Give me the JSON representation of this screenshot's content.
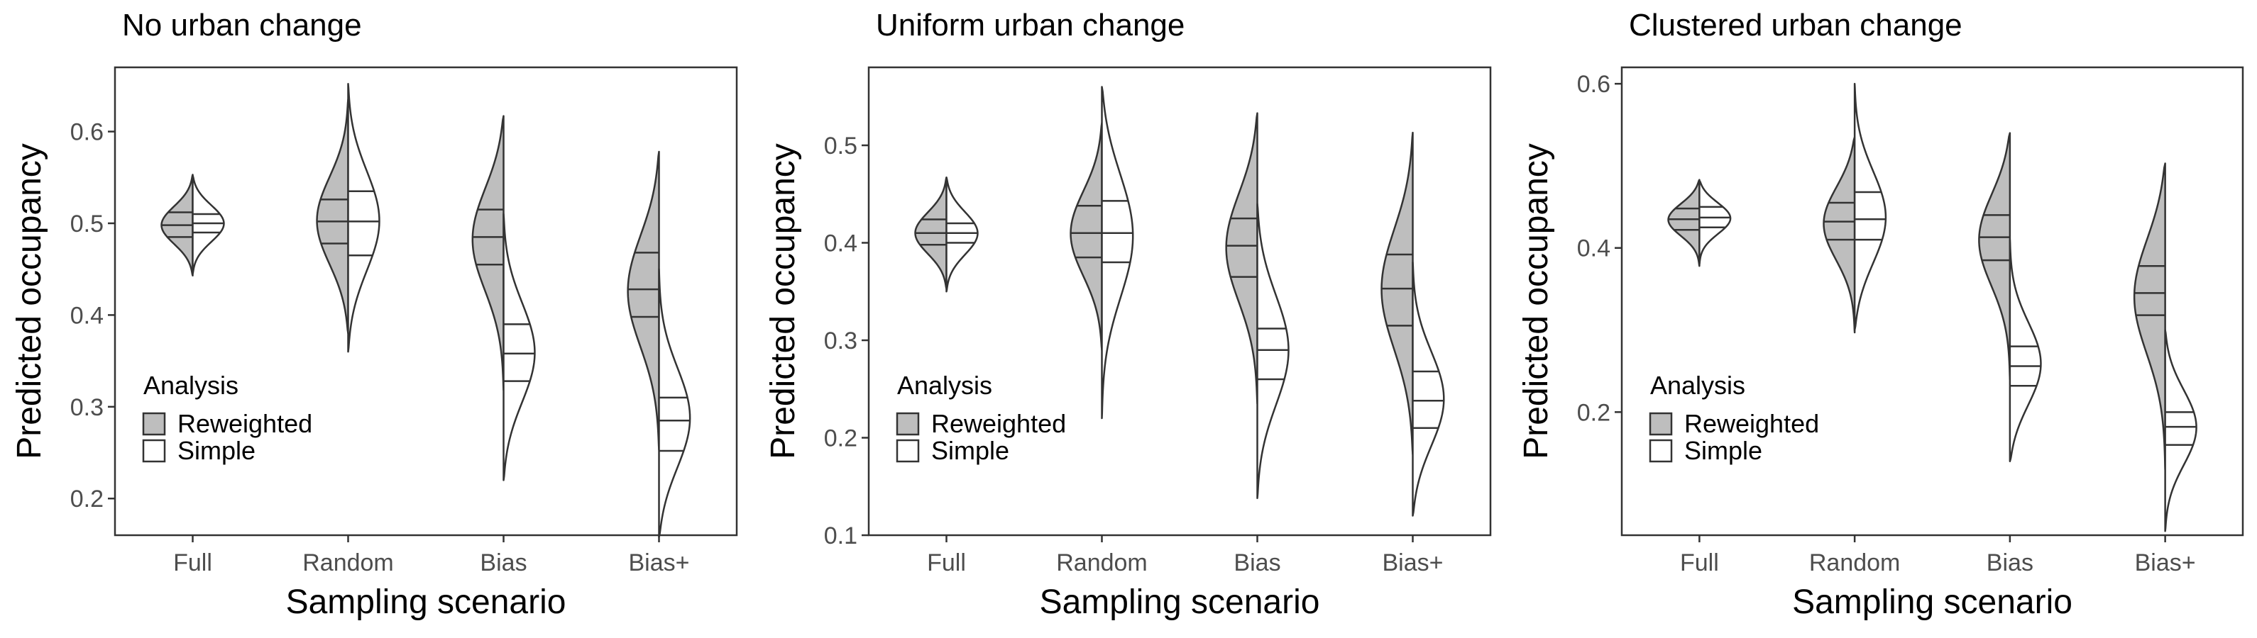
{
  "colors": {
    "reweighted_fill": "#bebebe",
    "simple_fill": "#ffffff",
    "outline": "#333333",
    "tick_text": "#4d4d4d"
  },
  "legend": {
    "title": "Analysis",
    "placement": "bottom-left inside each panel",
    "entries": [
      "Reweighted",
      "Simple"
    ]
  },
  "chart_data": [
    {
      "type": "split-violin",
      "title": "No urban change",
      "xlabel": "Sampling scenario",
      "ylabel": "Predicted occupancy",
      "categories": [
        "Full",
        "Random",
        "Bias",
        "Bias+"
      ],
      "ylim": [
        0.16,
        0.67
      ],
      "yticks": [
        0.2,
        0.3,
        0.4,
        0.5,
        0.6
      ],
      "ytick_labels": [
        "0.2",
        "0.3",
        "0.4",
        "0.5",
        "0.6"
      ],
      "grid": false,
      "quantiles": [
        0.25,
        0.5,
        0.75
      ],
      "series": [
        {
          "name": "Reweighted",
          "fill": "#bebebe",
          "violins": [
            {
              "min": 0.443,
              "q1": 0.485,
              "median": 0.498,
              "q3": 0.512,
              "max": 0.553
            },
            {
              "min": 0.38,
              "q1": 0.478,
              "median": 0.502,
              "q3": 0.526,
              "max": 0.635
            },
            {
              "min": 0.318,
              "q1": 0.455,
              "median": 0.485,
              "q3": 0.515,
              "max": 0.617
            },
            {
              "min": 0.253,
              "q1": 0.398,
              "median": 0.428,
              "q3": 0.468,
              "max": 0.578
            }
          ]
        },
        {
          "name": "Simple",
          "fill": "#ffffff",
          "violins": [
            {
              "min": 0.445,
              "q1": 0.49,
              "median": 0.5,
              "q3": 0.51,
              "max": 0.552
            },
            {
              "min": 0.36,
              "q1": 0.465,
              "median": 0.502,
              "q3": 0.535,
              "max": 0.652
            },
            {
              "min": 0.22,
              "q1": 0.328,
              "median": 0.358,
              "q3": 0.39,
              "max": 0.51
            },
            {
              "min": 0.158,
              "q1": 0.252,
              "median": 0.285,
              "q3": 0.31,
              "max": 0.45
            }
          ]
        }
      ]
    },
    {
      "type": "split-violin",
      "title": "Uniform urban change",
      "xlabel": "Sampling scenario",
      "ylabel": "Predicted occupancy",
      "categories": [
        "Full",
        "Random",
        "Bias",
        "Bias+"
      ],
      "ylim": [
        0.1,
        0.58
      ],
      "yticks": [
        0.1,
        0.2,
        0.3,
        0.4,
        0.5
      ],
      "ytick_labels": [
        "0.1",
        "0.2",
        "0.3",
        "0.4",
        "0.5"
      ],
      "grid": false,
      "quantiles": [
        0.25,
        0.5,
        0.75
      ],
      "series": [
        {
          "name": "Reweighted",
          "fill": "#bebebe",
          "violins": [
            {
              "min": 0.353,
              "q1": 0.398,
              "median": 0.41,
              "q3": 0.424,
              "max": 0.467
            },
            {
              "min": 0.29,
              "q1": 0.385,
              "median": 0.41,
              "q3": 0.438,
              "max": 0.523
            },
            {
              "min": 0.235,
              "q1": 0.365,
              "median": 0.397,
              "q3": 0.425,
              "max": 0.533
            },
            {
              "min": 0.183,
              "q1": 0.315,
              "median": 0.353,
              "q3": 0.388,
              "max": 0.513
            }
          ]
        },
        {
          "name": "Simple",
          "fill": "#ffffff",
          "violins": [
            {
              "min": 0.35,
              "q1": 0.4,
              "median": 0.41,
              "q3": 0.42,
              "max": 0.467
            },
            {
              "min": 0.22,
              "q1": 0.38,
              "median": 0.41,
              "q3": 0.443,
              "max": 0.56
            },
            {
              "min": 0.138,
              "q1": 0.26,
              "median": 0.29,
              "q3": 0.312,
              "max": 0.44
            },
            {
              "min": 0.12,
              "q1": 0.21,
              "median": 0.238,
              "q3": 0.268,
              "max": 0.38
            }
          ]
        }
      ]
    },
    {
      "type": "split-violin",
      "title": "Clustered urban change",
      "xlabel": "Sampling scenario",
      "ylabel": "Predicted occupancy",
      "categories": [
        "Full",
        "Random",
        "Bias",
        "Bias+"
      ],
      "ylim": [
        0.05,
        0.62
      ],
      "yticks": [
        0.2,
        0.4,
        0.6
      ],
      "ytick_labels": [
        "0.2",
        "0.4",
        "0.6"
      ],
      "grid": false,
      "quantiles": [
        0.25,
        0.5,
        0.75
      ],
      "series": [
        {
          "name": "Reweighted",
          "fill": "#bebebe",
          "violins": [
            {
              "min": 0.378,
              "q1": 0.422,
              "median": 0.435,
              "q3": 0.448,
              "max": 0.483
            },
            {
              "min": 0.297,
              "q1": 0.41,
              "median": 0.432,
              "q3": 0.455,
              "max": 0.535
            },
            {
              "min": 0.24,
              "q1": 0.385,
              "median": 0.413,
              "q3": 0.44,
              "max": 0.54
            },
            {
              "min": 0.13,
              "q1": 0.318,
              "median": 0.345,
              "q3": 0.378,
              "max": 0.503
            }
          ]
        },
        {
          "name": "Simple",
          "fill": "#ffffff",
          "violins": [
            {
              "min": 0.38,
              "q1": 0.425,
              "median": 0.437,
              "q3": 0.45,
              "max": 0.482
            },
            {
              "min": 0.3,
              "q1": 0.41,
              "median": 0.435,
              "q3": 0.468,
              "max": 0.6
            },
            {
              "min": 0.14,
              "q1": 0.232,
              "median": 0.256,
              "q3": 0.28,
              "max": 0.41
            },
            {
              "min": 0.055,
              "q1": 0.16,
              "median": 0.182,
              "q3": 0.2,
              "max": 0.3
            }
          ]
        }
      ]
    }
  ]
}
